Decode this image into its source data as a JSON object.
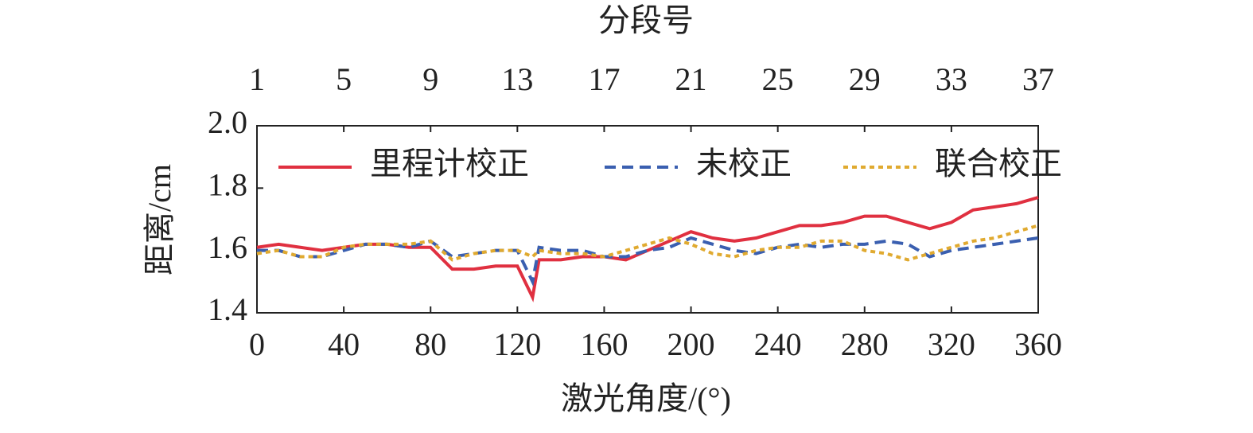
{
  "chart_data": {
    "type": "line",
    "title": "分段号",
    "xlabel": "激光角度/(°)",
    "ylabel": "距离/cm",
    "x": [
      0,
      10,
      20,
      30,
      40,
      50,
      60,
      70,
      80,
      90,
      100,
      110,
      120,
      127,
      130,
      140,
      150,
      160,
      170,
      180,
      190,
      200,
      210,
      220,
      230,
      240,
      250,
      260,
      270,
      280,
      290,
      300,
      310,
      320,
      330,
      340,
      350,
      360
    ],
    "series": [
      {
        "name": "里程计校正",
        "color": "#e03040",
        "dash": "solid",
        "values": [
          1.61,
          1.62,
          1.61,
          1.6,
          1.61,
          1.62,
          1.62,
          1.61,
          1.61,
          1.54,
          1.54,
          1.55,
          1.55,
          1.45,
          1.57,
          1.57,
          1.58,
          1.58,
          1.57,
          1.6,
          1.63,
          1.66,
          1.64,
          1.63,
          1.64,
          1.66,
          1.68,
          1.68,
          1.69,
          1.71,
          1.71,
          1.69,
          1.67,
          1.69,
          1.73,
          1.74,
          1.75,
          1.77
        ]
      },
      {
        "name": "未校正",
        "color": "#3a5fb0",
        "dash": "dashed",
        "values": [
          1.6,
          1.6,
          1.58,
          1.58,
          1.6,
          1.62,
          1.62,
          1.61,
          1.63,
          1.58,
          1.59,
          1.6,
          1.6,
          1.5,
          1.61,
          1.6,
          1.6,
          1.58,
          1.58,
          1.6,
          1.61,
          1.64,
          1.62,
          1.6,
          1.59,
          1.61,
          1.62,
          1.61,
          1.62,
          1.62,
          1.63,
          1.62,
          1.58,
          1.6,
          1.61,
          1.62,
          1.63,
          1.64
        ]
      },
      {
        "name": "联合校正",
        "color": "#e0aa30",
        "dash": "dotted",
        "values": [
          1.59,
          1.6,
          1.58,
          1.58,
          1.61,
          1.62,
          1.62,
          1.62,
          1.63,
          1.57,
          1.59,
          1.6,
          1.6,
          1.58,
          1.6,
          1.59,
          1.59,
          1.58,
          1.6,
          1.62,
          1.64,
          1.62,
          1.59,
          1.58,
          1.6,
          1.61,
          1.61,
          1.63,
          1.63,
          1.6,
          1.59,
          1.57,
          1.59,
          1.61,
          1.63,
          1.64,
          1.66,
          1.68
        ]
      }
    ],
    "xlim": [
      0,
      360
    ],
    "xticks": [
      0,
      40,
      80,
      120,
      160,
      200,
      240,
      280,
      320,
      360
    ],
    "x2lim": [
      1,
      37
    ],
    "x2ticks": [
      1,
      5,
      9,
      13,
      17,
      21,
      25,
      29,
      33,
      37
    ],
    "ylim": [
      1.4,
      2.0
    ],
    "yticks": [
      1.4,
      1.6,
      1.8,
      {
        "value": 2.0,
        "label": "2.0"
      }
    ],
    "legend": "top"
  }
}
